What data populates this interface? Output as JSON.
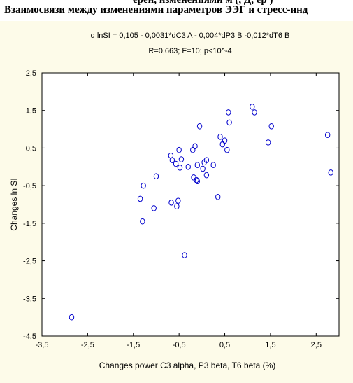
{
  "header": {
    "clipped_text": "ерей, изменениями м (, Д,  ер )",
    "title": "Взаимосвязи между изменениями параметров ЭЭГ и стресс-инд"
  },
  "chart_data": {
    "type": "scatter",
    "equation": "d lnSI = 0,105 - 0,0031*dC3 A - 0,004*dP3 B -0,012*dT6 B",
    "stats": "R=0,663; F=10;  p<10^-4",
    "xlabel": "Changes power  C3 alpha,  P3 beta,  T6 beta (%)",
    "ylabel": "Changes ln SI",
    "xlim": [
      -3.5,
      3.0
    ],
    "ylim": [
      -4.5,
      2.5
    ],
    "x_ticks": [
      "-3,5",
      "-2,5",
      "-1,5",
      "-0,5",
      "0,5",
      "1,5",
      "2,5"
    ],
    "y_ticks": [
      "2,5",
      "1,5",
      "0,5",
      "-0,5",
      "-1,5",
      "-2,5",
      "-3,5",
      "-4,5"
    ],
    "x_tick_values": [
      -3.5,
      -2.5,
      -1.5,
      -0.5,
      0.5,
      1.5,
      2.5
    ],
    "y_tick_values": [
      2.5,
      1.5,
      0.5,
      -0.5,
      -1.5,
      -2.5,
      -3.5,
      -4.5
    ],
    "grid": false,
    "marker_color": "#0000cc",
    "points": [
      {
        "x": -2.85,
        "y": -4.0
      },
      {
        "x": -1.35,
        "y": -0.85
      },
      {
        "x": -1.3,
        "y": -1.45
      },
      {
        "x": -1.28,
        "y": -0.5
      },
      {
        "x": -1.05,
        "y": -1.1
      },
      {
        "x": -1.0,
        "y": -0.25
      },
      {
        "x": -0.68,
        "y": 0.3
      },
      {
        "x": -0.65,
        "y": 0.18
      },
      {
        "x": -0.67,
        "y": -0.95
      },
      {
        "x": -0.57,
        "y": 0.08
      },
      {
        "x": -0.55,
        "y": -1.05
      },
      {
        "x": -0.52,
        "y": -0.9
      },
      {
        "x": -0.5,
        "y": 0.45
      },
      {
        "x": -0.48,
        "y": -0.02
      },
      {
        "x": -0.45,
        "y": 0.2
      },
      {
        "x": -0.38,
        "y": -2.35
      },
      {
        "x": -0.3,
        "y": 0.0
      },
      {
        "x": -0.2,
        "y": 0.45
      },
      {
        "x": -0.15,
        "y": 0.55
      },
      {
        "x": -0.18,
        "y": -0.28
      },
      {
        "x": -0.1,
        "y": 0.05
      },
      {
        "x": -0.1,
        "y": -0.38
      },
      {
        "x": -0.12,
        "y": -0.35
      },
      {
        "x": -0.05,
        "y": 1.08
      },
      {
        "x": 0.02,
        "y": -0.05
      },
      {
        "x": 0.05,
        "y": 0.12
      },
      {
        "x": 0.1,
        "y": 0.18
      },
      {
        "x": 0.1,
        "y": -0.22
      },
      {
        "x": 0.25,
        "y": 0.05
      },
      {
        "x": 0.35,
        "y": -0.8
      },
      {
        "x": 0.4,
        "y": 0.8
      },
      {
        "x": 0.45,
        "y": 0.6
      },
      {
        "x": 0.5,
        "y": 0.7
      },
      {
        "x": 0.55,
        "y": 0.45
      },
      {
        "x": 0.58,
        "y": 1.45
      },
      {
        "x": 0.6,
        "y": 1.18
      },
      {
        "x": 1.1,
        "y": 1.6
      },
      {
        "x": 1.15,
        "y": 1.45
      },
      {
        "x": 1.45,
        "y": 0.65
      },
      {
        "x": 1.52,
        "y": 1.08
      },
      {
        "x": 2.75,
        "y": 0.85
      },
      {
        "x": 2.82,
        "y": -0.15
      }
    ]
  }
}
